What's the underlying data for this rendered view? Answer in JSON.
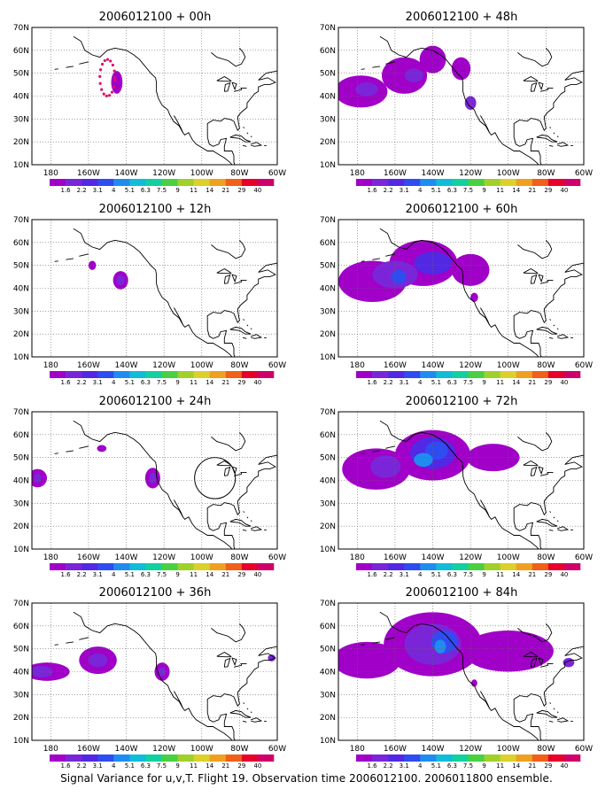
{
  "caption": "Signal Variance for u,v,T. Flight 19. Observation time 2006012100. 2006011800 ensemble.",
  "map": {
    "lon_range": [
      -190,
      -60
    ],
    "lat_range": [
      10,
      70
    ],
    "lat_ticks": [
      "10N",
      "20N",
      "30N",
      "40N",
      "50N",
      "60N",
      "70N"
    ],
    "lon_ticks": [
      "180",
      "160W",
      "140W",
      "120W",
      "100W",
      "80W",
      "60W"
    ],
    "lon_tick_values": [
      -180,
      -160,
      -140,
      -120,
      -100,
      -80,
      -60
    ],
    "lat_tick_values": [
      10,
      20,
      30,
      40,
      50,
      60,
      70
    ]
  },
  "colorbar": {
    "labels": [
      "1.6",
      "2.2",
      "3.1",
      "4",
      "5.1",
      "6.3",
      "7.5",
      "9",
      "11",
      "14",
      "21",
      "29",
      "40"
    ],
    "colors": [
      "#a000c8",
      "#7a26d8",
      "#5228e4",
      "#2f4cf0",
      "#1f8cf0",
      "#11bcd8",
      "#12d0a0",
      "#48d040",
      "#a0d02a",
      "#dcd02a",
      "#f0a020",
      "#f06018",
      "#e8002a",
      "#d0006a"
    ]
  },
  "panels": [
    {
      "title": "2006012100 + 00h",
      "blobs": [
        {
          "lon": -145,
          "lat": 46,
          "rx": 3,
          "ry": 5,
          "level": 0
        }
      ],
      "marker_ring": true
    },
    {
      "title": "2006012100 + 12h",
      "blobs": [
        {
          "lon": -158,
          "lat": 50,
          "rx": 2,
          "ry": 2,
          "level": 0
        },
        {
          "lon": -143,
          "lat": 43.5,
          "rx": 4,
          "ry": 4,
          "level": 0
        },
        {
          "lon": -143,
          "lat": 43.5,
          "rx": 2.2,
          "ry": 2.2,
          "level": 1
        }
      ]
    },
    {
      "title": "2006012100 + 24h",
      "blobs": [
        {
          "lon": -187,
          "lat": 41,
          "rx": 5,
          "ry": 4,
          "level": 0
        },
        {
          "lon": -187,
          "lat": 41,
          "rx": 2,
          "ry": 2,
          "level": 1
        },
        {
          "lon": -153,
          "lat": 54,
          "rx": 2.5,
          "ry": 1.5,
          "level": 0
        },
        {
          "lon": -126,
          "lat": 41,
          "rx": 4,
          "ry": 4.5,
          "level": 0
        },
        {
          "lon": -126,
          "lat": 41,
          "rx": 2,
          "ry": 2.5,
          "level": 1
        }
      ],
      "circle": {
        "lon": -93,
        "lat": 41,
        "r": 9
      }
    },
    {
      "title": "2006012100 + 36h",
      "blobs": [
        {
          "lon": -182,
          "lat": 40,
          "rx": 12,
          "ry": 4,
          "level": 0
        },
        {
          "lon": -155,
          "lat": 45,
          "rx": 10,
          "ry": 6,
          "level": 0
        },
        {
          "lon": -185,
          "lat": 40,
          "rx": 6,
          "ry": 2.5,
          "level": 1
        },
        {
          "lon": -155,
          "lat": 45,
          "rx": 5,
          "ry": 3,
          "level": 1
        },
        {
          "lon": -121,
          "lat": 40,
          "rx": 4,
          "ry": 4,
          "level": 0
        },
        {
          "lon": -121,
          "lat": 40,
          "rx": 2,
          "ry": 2,
          "level": 1
        },
        {
          "lon": -63,
          "lat": 46,
          "rx": 2,
          "ry": 1.5,
          "level": 1
        }
      ]
    },
    {
      "title": "2006012100 + 48h",
      "blobs": [
        {
          "lon": -178,
          "lat": 42,
          "rx": 14,
          "ry": 7,
          "level": 0
        },
        {
          "lon": -155,
          "lat": 49,
          "rx": 12,
          "ry": 8,
          "level": 0
        },
        {
          "lon": -140,
          "lat": 56,
          "rx": 7,
          "ry": 6,
          "level": 0
        },
        {
          "lon": -125,
          "lat": 52,
          "rx": 5,
          "ry": 5,
          "level": 0
        },
        {
          "lon": -175,
          "lat": 43,
          "rx": 6,
          "ry": 3,
          "level": 1
        },
        {
          "lon": -150,
          "lat": 49,
          "rx": 5,
          "ry": 3,
          "level": 1
        },
        {
          "lon": -120,
          "lat": 37,
          "rx": 3,
          "ry": 3,
          "level": 1
        }
      ]
    },
    {
      "title": "2006012100 + 60h",
      "blobs": [
        {
          "lon": -172,
          "lat": 43,
          "rx": 18,
          "ry": 9,
          "level": 0
        },
        {
          "lon": -145,
          "lat": 51,
          "rx": 18,
          "ry": 10,
          "level": 0
        },
        {
          "lon": -120,
          "lat": 48,
          "rx": 10,
          "ry": 7,
          "level": 0
        },
        {
          "lon": -160,
          "lat": 46,
          "rx": 12,
          "ry": 6,
          "level": 1
        },
        {
          "lon": -140,
          "lat": 51,
          "rx": 10,
          "ry": 5,
          "level": 2
        },
        {
          "lon": -158,
          "lat": 45,
          "rx": 4,
          "ry": 3,
          "level": 3
        },
        {
          "lon": -118,
          "lat": 36,
          "rx": 2,
          "ry": 2,
          "level": 0
        }
      ]
    },
    {
      "title": "2006012100 + 72h",
      "blobs": [
        {
          "lon": -170,
          "lat": 45,
          "rx": 18,
          "ry": 9,
          "level": 0
        },
        {
          "lon": -140,
          "lat": 51,
          "rx": 20,
          "ry": 11,
          "level": 0
        },
        {
          "lon": -108,
          "lat": 50,
          "rx": 14,
          "ry": 6,
          "level": 0
        },
        {
          "lon": -165,
          "lat": 46,
          "rx": 8,
          "ry": 5,
          "level": 1
        },
        {
          "lon": -140,
          "lat": 52,
          "rx": 12,
          "ry": 7,
          "level": 2
        },
        {
          "lon": -138,
          "lat": 53,
          "rx": 6,
          "ry": 4,
          "level": 3
        },
        {
          "lon": -145,
          "lat": 49,
          "rx": 5,
          "ry": 3,
          "level": 4
        }
      ]
    },
    {
      "title": "2006012100 + 84h",
      "blobs": [
        {
          "lon": -175,
          "lat": 45,
          "rx": 18,
          "ry": 8,
          "level": 0
        },
        {
          "lon": -140,
          "lat": 52,
          "rx": 26,
          "ry": 14,
          "level": 0
        },
        {
          "lon": -100,
          "lat": 49,
          "rx": 24,
          "ry": 9,
          "level": 0
        },
        {
          "lon": -140,
          "lat": 52,
          "rx": 15,
          "ry": 9,
          "level": 1
        },
        {
          "lon": -134,
          "lat": 53,
          "rx": 7,
          "ry": 5,
          "level": 3
        },
        {
          "lon": -136,
          "lat": 51,
          "rx": 3,
          "ry": 3,
          "level": 4
        },
        {
          "lon": -68,
          "lat": 44,
          "rx": 3,
          "ry": 2,
          "level": 1
        },
        {
          "lon": -118,
          "lat": 35,
          "rx": 1.6,
          "ry": 1.6,
          "level": 0
        }
      ]
    }
  ]
}
